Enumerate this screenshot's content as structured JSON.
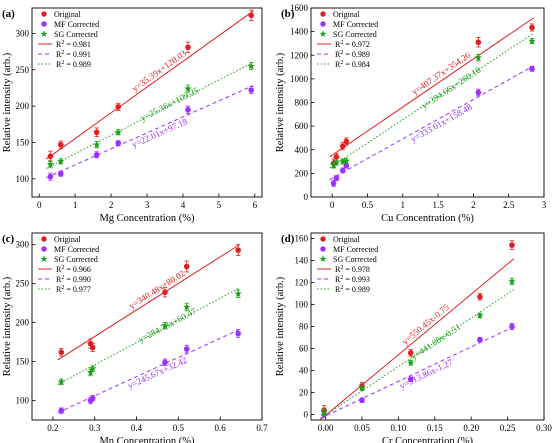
{
  "chart_data": [
    {
      "type": "scatter",
      "panel_label": "(a)",
      "xlabel": "Mg Concentration (%)",
      "ylabel": "Relative intensity (arb.)",
      "xlim": [
        -0.2,
        6.2
      ],
      "ylim": [
        75,
        335
      ],
      "xticks": [
        0,
        1,
        2,
        3,
        4,
        5,
        6
      ],
      "yticks": [
        100,
        150,
        200,
        250,
        300
      ],
      "legend_position": "top-left",
      "x": [
        0.31,
        0.6,
        1.6,
        2.2,
        4.14,
        5.9
      ],
      "series": [
        {
          "name": "Original",
          "color": "#e02020",
          "marker": "circle",
          "values": [
            131,
            147,
            164,
            199,
            281,
            325
          ],
          "fit": {
            "slope": 35.39,
            "intercept": 120.03,
            "r2": "0.981",
            "equation": "y=35.39x+120.03"
          }
        },
        {
          "name": "MF Corrected",
          "color": "#9b30ff",
          "marker": "circle",
          "values": [
            103,
            107,
            133,
            149,
            195,
            222
          ],
          "fit": {
            "slope": 22.01,
            "intercept": 97.18,
            "r2": "0.991",
            "equation": "y=22.01x+97.18"
          }
        },
        {
          "name": "SG Corrected",
          "color": "#18a018",
          "marker": "star",
          "values": [
            120,
            124,
            147,
            164,
            224,
            255
          ],
          "fit": {
            "slope": 25.36,
            "intercept": 109.25,
            "r2": "0.989",
            "equation": "y=25.36x+109.25"
          }
        }
      ]
    },
    {
      "type": "scatter",
      "panel_label": "(b)",
      "xlabel": "Cu Concentration (%)",
      "ylabel": "Relative intensity (arb.)",
      "xlim": [
        -0.3,
        3.0
      ],
      "ylim": [
        0,
        1600
      ],
      "xticks": [
        0.0,
        0.5,
        1.0,
        1.5,
        2.0,
        2.5,
        3.0
      ],
      "yticks": [
        0,
        200,
        400,
        600,
        800,
        1000,
        1200,
        1400,
        1600
      ],
      "legend_position": "top-left",
      "x": [
        0.02,
        0.06,
        0.15,
        0.2,
        2.07,
        2.83
      ],
      "series": [
        {
          "name": "Original",
          "color": "#e02020",
          "marker": "circle",
          "values": [
            286,
            340,
            430,
            470,
            1310,
            1435
          ],
          "fit": {
            "slope": 407.37,
            "intercept": 354.26,
            "r2": "0.972",
            "equation": "y=407.37x+354.26"
          }
        },
        {
          "name": "MF Corrected",
          "color": "#9b30ff",
          "marker": "circle",
          "values": [
            115,
            160,
            225,
            265,
            885,
            1085
          ],
          "fit": {
            "slope": 333.61,
            "intercept": 158.48,
            "r2": "0.989",
            "equation": "y=333.61x+158.48"
          }
        },
        {
          "name": "SG Corrected",
          "color": "#18a018",
          "marker": "star",
          "values": [
            270,
            290,
            300,
            305,
            1180,
            1320
          ],
          "fit": {
            "slope": 394.66,
            "intercept": 260.18,
            "r2": "0.984",
            "equation": "y=394.66x+260.18"
          }
        }
      ]
    },
    {
      "type": "scatter",
      "panel_label": "(c)",
      "xlabel": "Mn Concentration (%)",
      "ylabel": "Relative intensity (arb.)",
      "xlim": [
        0.15,
        0.7
      ],
      "ylim": [
        75,
        315
      ],
      "xticks": [
        0.2,
        0.3,
        0.4,
        0.5,
        0.6,
        0.7
      ],
      "yticks": [
        100,
        150,
        200,
        250,
        300
      ],
      "legend_position": "top-left",
      "x": [
        0.22,
        0.29,
        0.295,
        0.468,
        0.52,
        0.643
      ],
      "series": [
        {
          "name": "Original",
          "color": "#e02020",
          "marker": "circle",
          "values": [
            162,
            173,
            168,
            239,
            272,
            293
          ],
          "fit": {
            "slope": 340.48,
            "intercept": 80.02,
            "r2": "0.966",
            "equation": "y=340.48x+80.02"
          }
        },
        {
          "name": "MF Corrected",
          "color": "#9b30ff",
          "marker": "circle",
          "values": [
            87,
            100,
            103,
            149,
            166,
            186
          ],
          "fit": {
            "slope": 245.67,
            "intercept": 32.42,
            "r2": "0.990",
            "equation": "y=245.67x+32.42"
          }
        },
        {
          "name": "SG Corrected",
          "color": "#18a018",
          "marker": "star",
          "values": [
            124,
            136,
            141,
            196,
            220,
            237
          ],
          "fit": {
            "slope": 284.73,
            "intercept": 60.47,
            "r2": "0.977",
            "equation": "y=284.73x+60.47"
          }
        }
      ]
    },
    {
      "type": "scatter",
      "panel_label": "(d)",
      "xlabel": "Cr Concentration (%)",
      "ylabel": "Relative intensity (arb.)",
      "xlim": [
        -0.02,
        0.3
      ],
      "ylim": [
        -5,
        165
      ],
      "xticks": [
        0.0,
        0.05,
        0.1,
        0.15,
        0.2,
        0.25,
        0.3
      ],
      "xtick_labels": [
        "0.00",
        "0.05",
        "0.10",
        "0.15",
        "0.20",
        "0.25",
        "0.30"
      ],
      "yticks": [
        0,
        20,
        40,
        60,
        80,
        100,
        120,
        140,
        160
      ],
      "legend_position": "top-left",
      "x": [
        -0.002,
        0.05,
        0.117,
        0.212,
        0.256
      ],
      "series": [
        {
          "name": "Original",
          "color": "#e02020",
          "marker": "circle",
          "values": [
            4,
            26,
            56,
            107,
            154
          ],
          "fit": {
            "slope": 550.45,
            "intercept": -0.75,
            "r2": "0.978",
            "equation": "y=550.45x-0.75"
          }
        },
        {
          "name": "MF Corrected",
          "color": "#9b30ff",
          "marker": "circle",
          "values": [
            0,
            13,
            32,
            68,
            80
          ],
          "fit": {
            "slope": 313.86,
            "intercept": -1.27,
            "r2": "0.993",
            "equation": "y=313.86x-1.27"
          }
        },
        {
          "name": "SG Corrected",
          "color": "#18a018",
          "marker": "star",
          "values": [
            2,
            24,
            47,
            90,
            121
          ],
          "fit": {
            "slope": 441.08,
            "intercept": -0.51,
            "r2": "0.989",
            "equation": "y=441.08x-0.51"
          }
        }
      ]
    }
  ]
}
